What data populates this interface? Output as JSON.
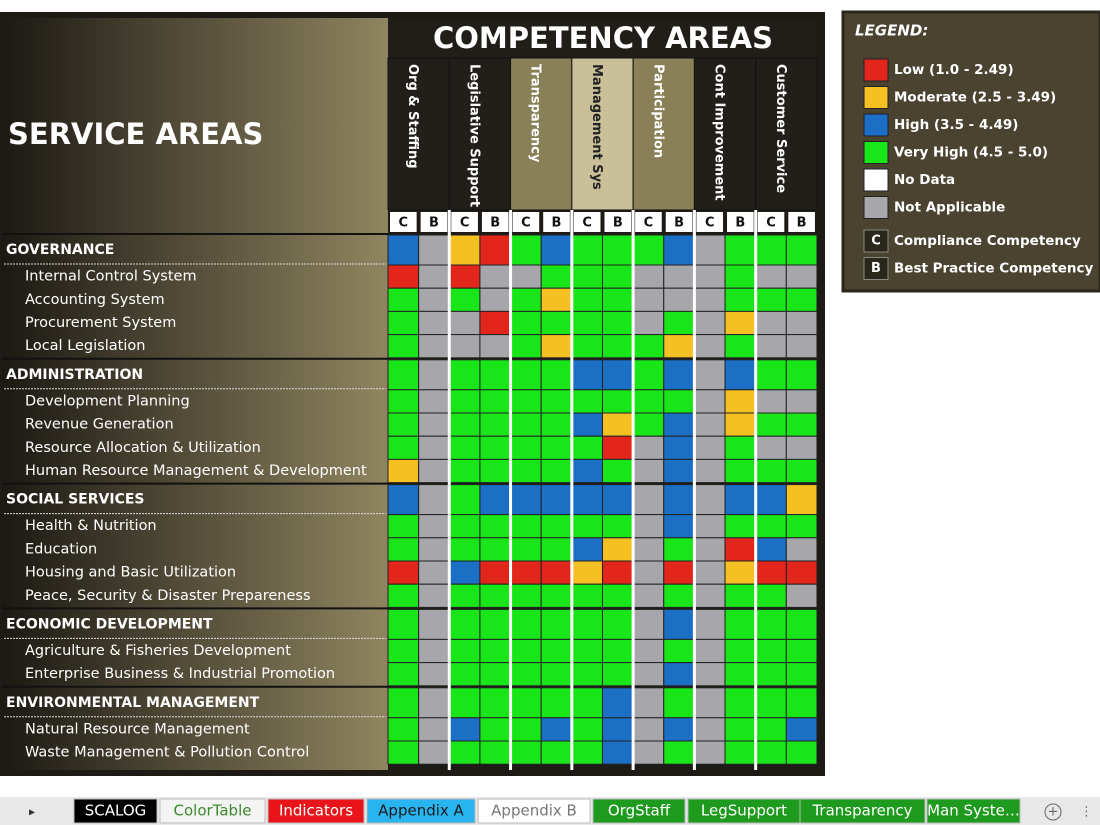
{
  "service_title": "SERVICE AREAS",
  "competency_title": "COMPETENCY AREAS",
  "competencies": [
    {
      "name": "Org & Staffing",
      "sub": [
        "C",
        "B"
      ]
    },
    {
      "name": "Legislative Support",
      "sub": [
        "C",
        "B"
      ]
    },
    {
      "name": "Transparency",
      "sub": [
        "C",
        "B"
      ]
    },
    {
      "name": "Management Sys",
      "sub": [
        "C",
        "B"
      ]
    },
    {
      "name": "Participation",
      "sub": [
        "C",
        "B"
      ]
    },
    {
      "name": "Cont Improvement",
      "sub": [
        "C",
        "B"
      ]
    },
    {
      "name": "Customer Service",
      "sub": [
        "C",
        "B"
      ]
    }
  ],
  "groups": [
    {
      "name": "GOVERNANCE",
      "cells": [
        "#1b6fc4",
        "#a7a6ab",
        "#f5c022",
        "#e3261c",
        "#19e619",
        "#1b6fc4",
        "#19e619",
        "#19e619",
        "#19e619",
        "#1b6fc4",
        "#a7a6ab",
        "#19e619",
        "#19e619",
        "#19e619"
      ],
      "items": [
        {
          "name": "Internal Control System",
          "cells": [
            "#e3261c",
            "#a7a6ab",
            "#e3261c",
            "#a7a6ab",
            "#a7a6ab",
            "#19e619",
            "#19e619",
            "#19e619",
            "#a7a6ab",
            "#a7a6ab",
            "#a7a6ab",
            "#19e619",
            "#a7a6ab",
            "#a7a6ab"
          ]
        },
        {
          "name": "Accounting System",
          "cells": [
            "#19e619",
            "#a7a6ab",
            "#19e619",
            "#a7a6ab",
            "#19e619",
            "#f5c022",
            "#19e619",
            "#19e619",
            "#a7a6ab",
            "#a7a6ab",
            "#a7a6ab",
            "#19e619",
            "#19e619",
            "#19e619"
          ]
        },
        {
          "name": "Procurement System",
          "cells": [
            "#19e619",
            "#a7a6ab",
            "#a7a6ab",
            "#e3261c",
            "#19e619",
            "#19e619",
            "#19e619",
            "#19e619",
            "#a7a6ab",
            "#19e619",
            "#a7a6ab",
            "#f5c022",
            "#a7a6ab",
            "#a7a6ab"
          ]
        },
        {
          "name": "Local Legislation",
          "cells": [
            "#19e619",
            "#a7a6ab",
            "#a7a6ab",
            "#a7a6ab",
            "#19e619",
            "#f5c022",
            "#19e619",
            "#19e619",
            "#19e619",
            "#f5c022",
            "#a7a6ab",
            "#19e619",
            "#a7a6ab",
            "#a7a6ab"
          ]
        }
      ]
    },
    {
      "name": "ADMINISTRATION",
      "cells": [
        "#19e619",
        "#a7a6ab",
        "#19e619",
        "#19e619",
        "#19e619",
        "#19e619",
        "#1b6fc4",
        "#1b6fc4",
        "#19e619",
        "#1b6fc4",
        "#a7a6ab",
        "#1b6fc4",
        "#19e619",
        "#19e619"
      ],
      "items": [
        {
          "name": "Development Planning",
          "cells": [
            "#19e619",
            "#a7a6ab",
            "#19e619",
            "#19e619",
            "#19e619",
            "#19e619",
            "#19e619",
            "#19e619",
            "#19e619",
            "#19e619",
            "#a7a6ab",
            "#f5c022",
            "#a7a6ab",
            "#a7a6ab"
          ]
        },
        {
          "name": "Revenue Generation",
          "cells": [
            "#19e619",
            "#a7a6ab",
            "#19e619",
            "#19e619",
            "#19e619",
            "#19e619",
            "#1b6fc4",
            "#f5c022",
            "#19e619",
            "#1b6fc4",
            "#a7a6ab",
            "#f5c022",
            "#19e619",
            "#19e619"
          ]
        },
        {
          "name": "Resource Allocation & Utilization",
          "cells": [
            "#19e619",
            "#a7a6ab",
            "#19e619",
            "#19e619",
            "#19e619",
            "#19e619",
            "#19e619",
            "#e3261c",
            "#a7a6ab",
            "#1b6fc4",
            "#a7a6ab",
            "#19e619",
            "#a7a6ab",
            "#a7a6ab"
          ]
        },
        {
          "name": "Human Resource Management & Development",
          "cells": [
            "#f5c022",
            "#a7a6ab",
            "#19e619",
            "#19e619",
            "#19e619",
            "#19e619",
            "#1b6fc4",
            "#19e619",
            "#a7a6ab",
            "#1b6fc4",
            "#a7a6ab",
            "#19e619",
            "#19e619",
            "#19e619"
          ]
        }
      ]
    },
    {
      "name": "SOCIAL SERVICES",
      "cells": [
        "#1b6fc4",
        "#a7a6ab",
        "#19e619",
        "#1b6fc4",
        "#1b6fc4",
        "#1b6fc4",
        "#1b6fc4",
        "#1b6fc4",
        "#a7a6ab",
        "#1b6fc4",
        "#a7a6ab",
        "#1b6fc4",
        "#1b6fc4",
        "#f5c022"
      ],
      "items": [
        {
          "name": "Health & Nutrition",
          "cells": [
            "#19e619",
            "#a7a6ab",
            "#19e619",
            "#19e619",
            "#19e619",
            "#19e619",
            "#19e619",
            "#19e619",
            "#a7a6ab",
            "#1b6fc4",
            "#a7a6ab",
            "#19e619",
            "#19e619",
            "#19e619"
          ]
        },
        {
          "name": "Education",
          "cells": [
            "#19e619",
            "#a7a6ab",
            "#19e619",
            "#19e619",
            "#19e619",
            "#19e619",
            "#1b6fc4",
            "#f5c022",
            "#a7a6ab",
            "#19e619",
            "#a7a6ab",
            "#e3261c",
            "#1b6fc4",
            "#a7a6ab"
          ]
        },
        {
          "name": "Housing and Basic Utilization",
          "cells": [
            "#e3261c",
            "#a7a6ab",
            "#1b6fc4",
            "#e3261c",
            "#e3261c",
            "#e3261c",
            "#f5c022",
            "#e3261c",
            "#a7a6ab",
            "#e3261c",
            "#a7a6ab",
            "#f5c022",
            "#e3261c",
            "#e3261c"
          ]
        },
        {
          "name": "Peace, Security & Disaster Prepareness",
          "cells": [
            "#19e619",
            "#a7a6ab",
            "#19e619",
            "#19e619",
            "#19e619",
            "#19e619",
            "#19e619",
            "#19e619",
            "#a7a6ab",
            "#19e619",
            "#a7a6ab",
            "#19e619",
            "#19e619",
            "#a7a6ab"
          ]
        }
      ]
    },
    {
      "name": "ECONOMIC DEVELOPMENT",
      "cells": [
        "#19e619",
        "#a7a6ab",
        "#19e619",
        "#19e619",
        "#19e619",
        "#19e619",
        "#19e619",
        "#19e619",
        "#a7a6ab",
        "#1b6fc4",
        "#a7a6ab",
        "#19e619",
        "#19e619",
        "#19e619"
      ],
      "items": [
        {
          "name": "Agriculture & Fisheries Development",
          "cells": [
            "#19e619",
            "#a7a6ab",
            "#19e619",
            "#19e619",
            "#19e619",
            "#19e619",
            "#19e619",
            "#19e619",
            "#a7a6ab",
            "#19e619",
            "#a7a6ab",
            "#19e619",
            "#19e619",
            "#19e619"
          ]
        },
        {
          "name": "Enterprise Business & Industrial Promotion",
          "cells": [
            "#19e619",
            "#a7a6ab",
            "#19e619",
            "#19e619",
            "#19e619",
            "#19e619",
            "#19e619",
            "#19e619",
            "#a7a6ab",
            "#1b6fc4",
            "#a7a6ab",
            "#19e619",
            "#19e619",
            "#19e619"
          ]
        }
      ]
    },
    {
      "name": "ENVIRONMENTAL MANAGEMENT",
      "cells": [
        "#19e619",
        "#a7a6ab",
        "#19e619",
        "#19e619",
        "#19e619",
        "#19e619",
        "#19e619",
        "#1b6fc4",
        "#a7a6ab",
        "#19e619",
        "#a7a6ab",
        "#19e619",
        "#19e619",
        "#19e619"
      ],
      "items": [
        {
          "name": "Natural Resource Management",
          "cells": [
            "#19e619",
            "#a7a6ab",
            "#1b6fc4",
            "#19e619",
            "#19e619",
            "#1b6fc4",
            "#19e619",
            "#1b6fc4",
            "#a7a6ab",
            "#1b6fc4",
            "#a7a6ab",
            "#19e619",
            "#19e619",
            "#1b6fc4"
          ]
        },
        {
          "name": "Waste Management & Pollution Control",
          "cells": [
            "#19e619",
            "#a7a6ab",
            "#19e619",
            "#19e619",
            "#19e619",
            "#19e619",
            "#19e619",
            "#1b6fc4",
            "#a7a6ab",
            "#19e619",
            "#a7a6ab",
            "#19e619",
            "#19e619",
            "#19e619"
          ]
        }
      ]
    }
  ],
  "legend": {
    "title": "LEGEND:",
    "levels": [
      {
        "label": "Low (1.0 - 2.49)",
        "color": "#e3261c"
      },
      {
        "label": "Moderate (2.5 - 3.49)",
        "color": "#f5c022"
      },
      {
        "label": "High (3.5 - 4.49)",
        "color": "#1b6fc4"
      },
      {
        "label": "Very High (4.5 - 5.0)",
        "color": "#19e619"
      },
      {
        "label": "No Data",
        "color": "#ffffff"
      },
      {
        "label": "Not Applicable",
        "color": "#a7a6ab"
      }
    ],
    "types": [
      {
        "key": "C",
        "label": "Compliance Competency"
      },
      {
        "key": "B",
        "label": "Best Practice Competency"
      }
    ]
  },
  "tabs": [
    {
      "label": "SCALOG",
      "bg": "#000000",
      "fg": "#ffffff"
    },
    {
      "label": "ColorTable",
      "bg": "#f4f4f4",
      "fg": "#3a8a2a"
    },
    {
      "label": "Indicators",
      "bg": "#e8141a",
      "fg": "#ffffff"
    },
    {
      "label": "Appendix A",
      "bg": "#28b4ee",
      "fg": "#1a1a1a"
    },
    {
      "label": "Appendix B",
      "bg": "#ffffff",
      "fg": "#777777"
    },
    {
      "label": "OrgStaff",
      "bg": "#1e9a1e",
      "fg": "#ffffff"
    },
    {
      "label": "LegSupport",
      "bg": "#1e9a1e",
      "fg": "#ffffff"
    },
    {
      "label": "Transparency",
      "bg": "#1e9a1e",
      "fg": "#ffffff"
    },
    {
      "label": "Man Syste…",
      "bg": "#1e9a1e",
      "fg": "#ffffff"
    }
  ]
}
